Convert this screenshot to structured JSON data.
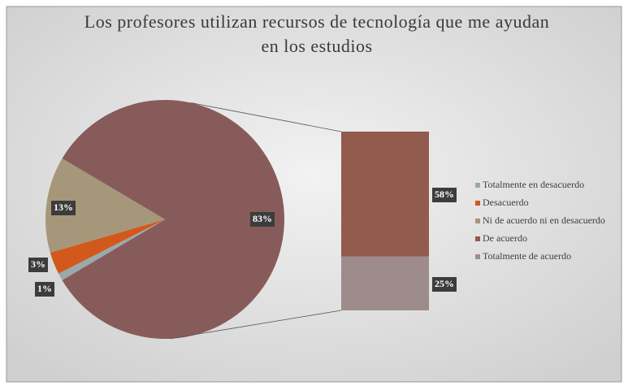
{
  "chart_data": {
    "type": "bar-of-pie",
    "title": "Los profesores utilizan recursos de tecnología que me ayudan en los estudios",
    "categories": [
      "Totalmente en desacuerdo",
      "Desacuerdo",
      "Ni de acuerdo ni en desacuerdo",
      "De acuerdo",
      "Totalmente de acuerdo"
    ],
    "values": [
      1,
      3,
      13,
      58,
      25
    ],
    "value_labels": [
      "1%",
      "3%",
      "13%",
      "58%",
      "25%"
    ],
    "colors": [
      "#9aaaac",
      "#d2581c",
      "#a6977a",
      "#935a4e",
      "#9e8c8c"
    ],
    "combined_value": 83,
    "combined_label": "83%",
    "combined_color": "#885b5b",
    "secondary_count": 2,
    "legend": "right"
  }
}
